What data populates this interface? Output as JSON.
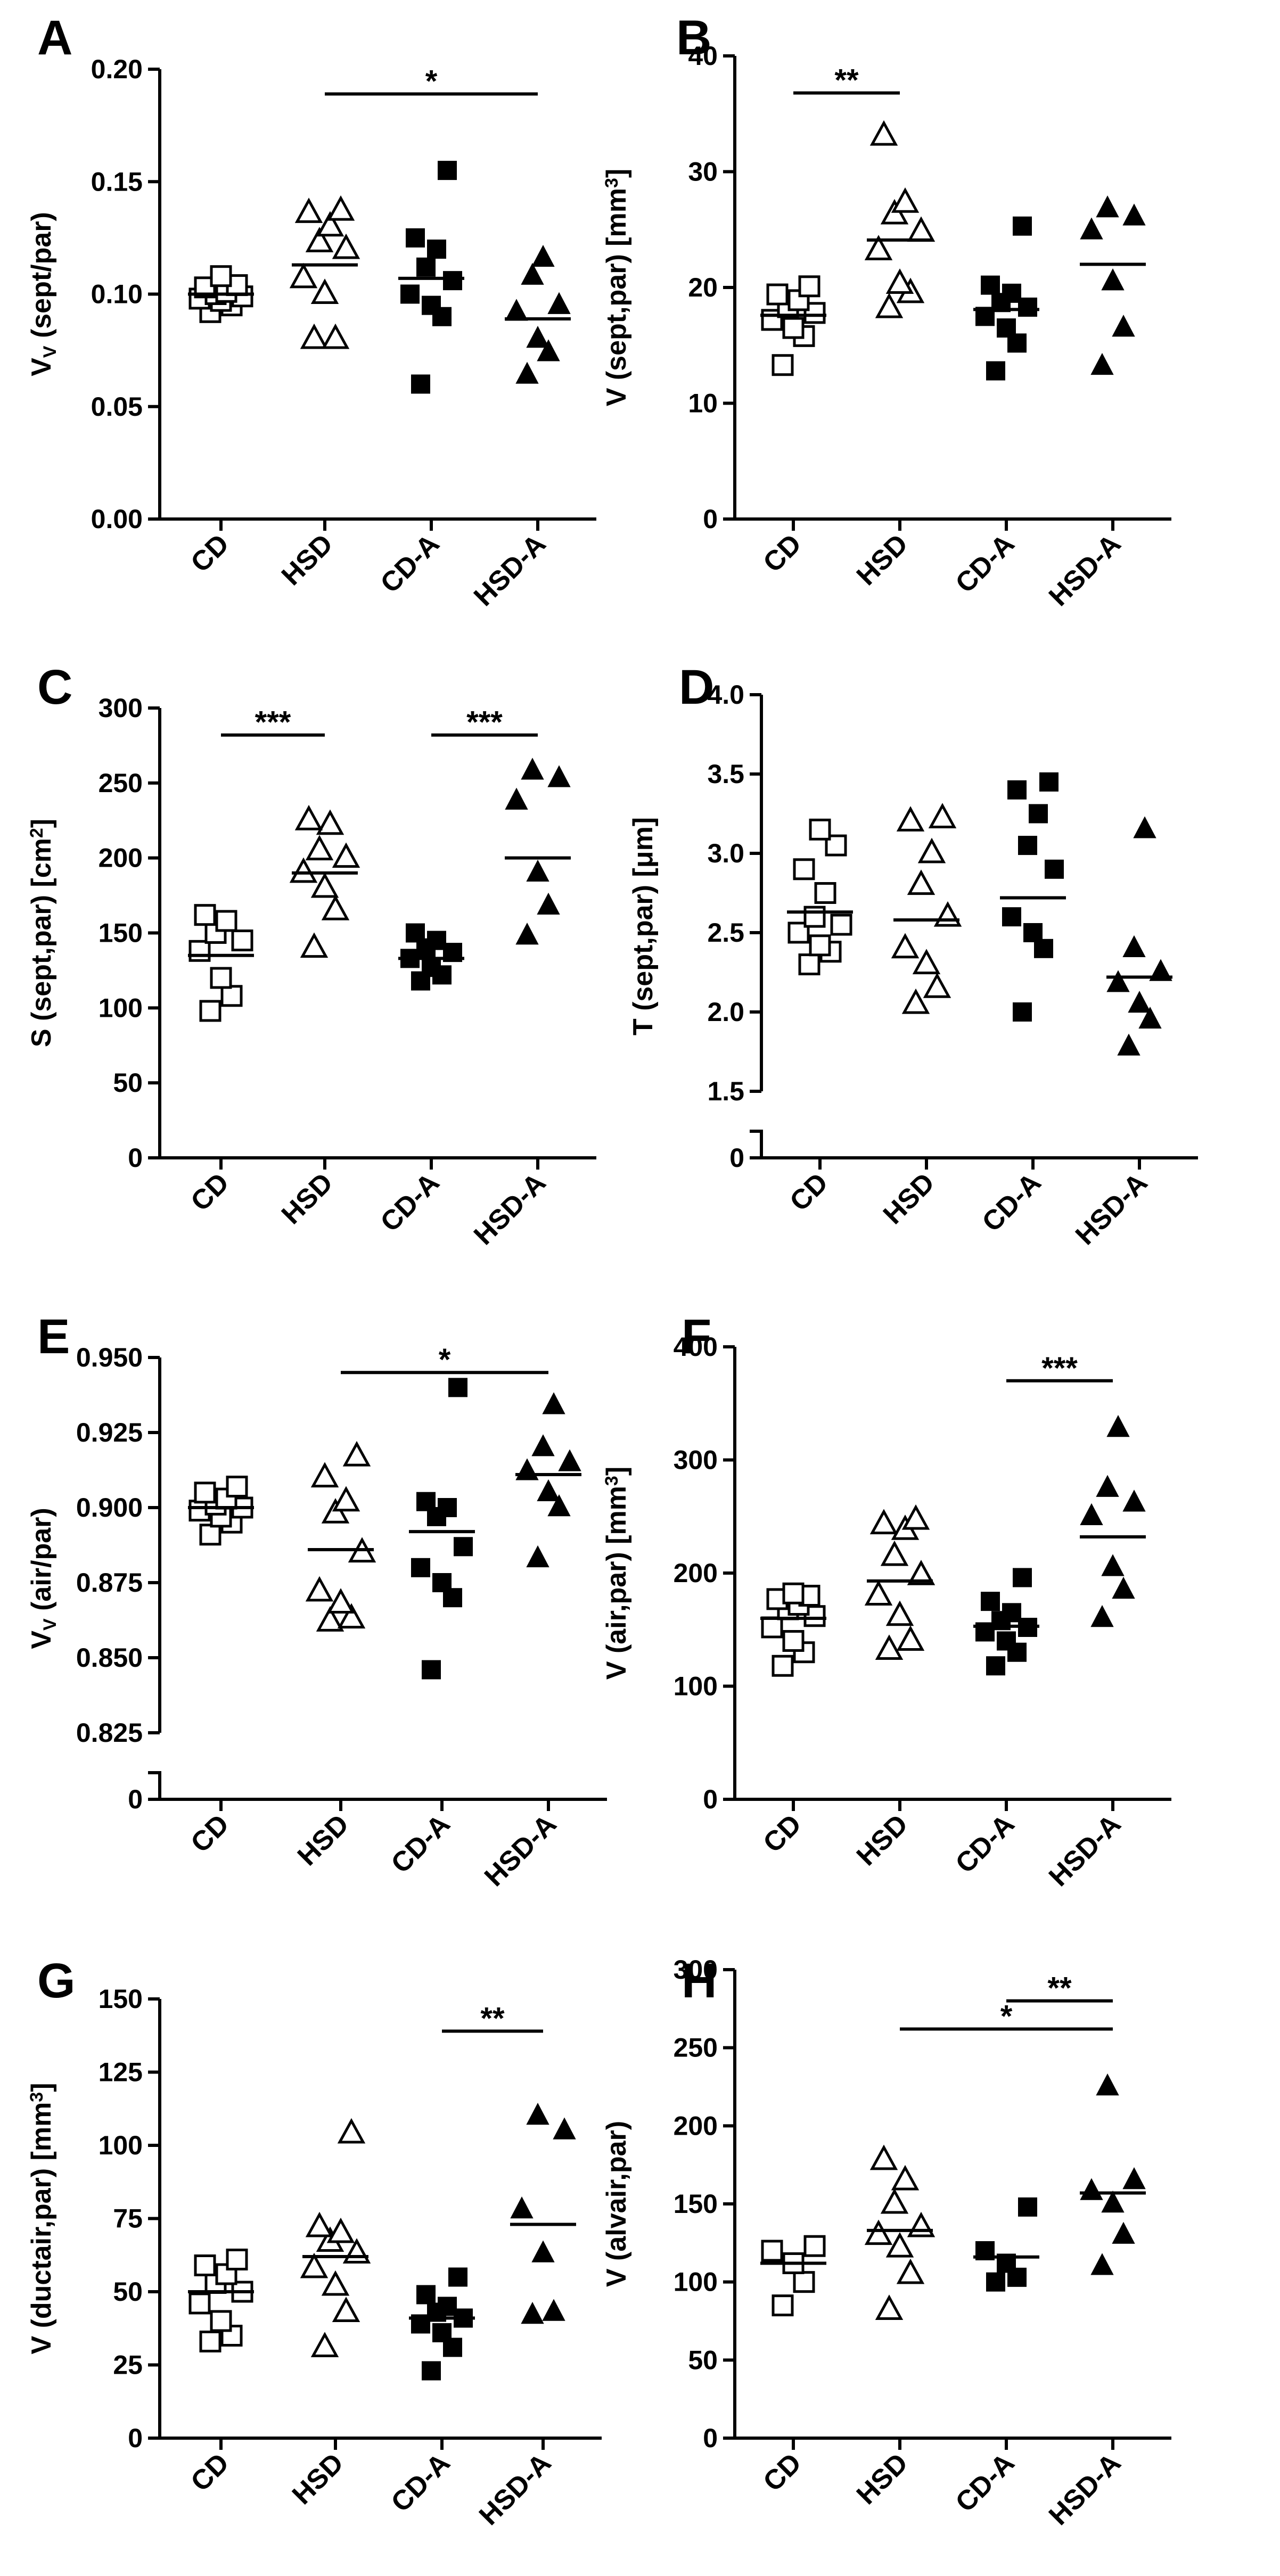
{
  "chart_data": [
    {
      "panel": "A",
      "type": "scatter",
      "ylabel": "V_V (sept/par)",
      "ylabel_parts": [
        {
          "t": "V"
        },
        {
          "t": "V",
          "sub": true
        },
        {
          "t": " (sept/par)"
        }
      ],
      "categories": [
        "CD",
        "HSD",
        "CD-A",
        "HSD-A"
      ],
      "markers": [
        "open-square",
        "open-triangle",
        "filled-square",
        "filled-triangle"
      ],
      "ylim": [
        0,
        0.2
      ],
      "yticks": [
        0,
        0.05,
        0.1,
        0.15,
        0.2
      ],
      "ytick_labels": [
        "0.00",
        "0.05",
        "0.10",
        "0.15",
        "0.20"
      ],
      "values": [
        [
          0.092,
          0.095,
          0.097,
          0.098,
          0.099,
          0.1,
          0.101,
          0.103,
          0.104,
          0.108
        ],
        [
          0.08,
          0.08,
          0.1,
          0.107,
          0.12,
          0.123,
          0.13,
          0.136,
          0.137
        ],
        [
          0.06,
          0.09,
          0.095,
          0.1,
          0.106,
          0.112,
          0.12,
          0.125,
          0.155
        ],
        [
          0.064,
          0.074,
          0.08,
          0.092,
          0.095,
          0.108,
          0.116
        ]
      ],
      "means": [
        0.1,
        0.113,
        0.107,
        0.089
      ],
      "significance": [
        {
          "from": 1,
          "to": 3,
          "y": 0.189,
          "label": "*"
        }
      ]
    },
    {
      "panel": "B",
      "type": "scatter",
      "ylabel": "V (sept,par) [mm3]",
      "ylabel_parts": [
        {
          "t": "V (sept,par) [mm"
        },
        {
          "t": "3",
          "sup": true
        },
        {
          "t": "]"
        }
      ],
      "categories": [
        "CD",
        "HSD",
        "CD-A",
        "HSD-A"
      ],
      "markers": [
        "open-square",
        "open-triangle",
        "filled-square",
        "filled-triangle"
      ],
      "ylim": [
        0,
        40
      ],
      "yticks": [
        0,
        10,
        20,
        30,
        40
      ],
      "ytick_labels": [
        "0",
        "10",
        "20",
        "30",
        "40"
      ],
      "values": [
        [
          13.3,
          15.8,
          16.5,
          17.2,
          17.8,
          18.3,
          18.9,
          19.4,
          20.1
        ],
        [
          18.2,
          19.5,
          20.3,
          23.2,
          24.8,
          26.3,
          27.3,
          33.1
        ],
        [
          12.8,
          15.2,
          16.5,
          17.5,
          18.3,
          18.7,
          19.5,
          20.2,
          25.3
        ],
        [
          13.2,
          16.5,
          20.5,
          24.9,
          26.1,
          26.8
        ]
      ],
      "means": [
        17.6,
        24.1,
        18.1,
        22.0
      ],
      "significance": [
        {
          "from": 0,
          "to": 1,
          "y": 36.8,
          "label": "**"
        }
      ]
    },
    {
      "panel": "C",
      "type": "scatter",
      "ylabel": "S (sept,par) [cm2]",
      "ylabel_parts": [
        {
          "t": "S (sept,par) [cm"
        },
        {
          "t": "2",
          "sup": true
        },
        {
          "t": "]"
        }
      ],
      "categories": [
        "CD",
        "HSD",
        "CD-A",
        "HSD-A"
      ],
      "markers": [
        "open-square",
        "open-triangle",
        "filled-square",
        "filled-triangle"
      ],
      "ylim": [
        0,
        300
      ],
      "yticks": [
        0,
        50,
        100,
        150,
        200,
        250,
        300
      ],
      "ytick_labels": [
        "0",
        "50",
        "100",
        "150",
        "200",
        "250",
        "300"
      ],
      "values": [
        [
          98,
          108,
          120,
          138,
          145,
          150,
          158,
          162
        ],
        [
          140,
          165,
          180,
          190,
          200,
          205,
          222,
          225
        ],
        [
          118,
          122,
          127,
          133,
          137,
          140,
          145,
          150
        ],
        [
          148,
          168,
          190,
          238,
          253,
          258
        ]
      ],
      "means": [
        135,
        190,
        133,
        200
      ],
      "significance": [
        {
          "from": 0,
          "to": 1,
          "y": 282,
          "label": "***"
        },
        {
          "from": 2,
          "to": 3,
          "y": 282,
          "label": "***"
        }
      ]
    },
    {
      "panel": "D",
      "type": "scatter",
      "ylabel": "T (sept,par) [μm]",
      "ylabel_parts": [
        {
          "t": "T (sept,par) [μm]"
        }
      ],
      "categories": [
        "CD",
        "HSD",
        "CD-A",
        "HSD-A"
      ],
      "markers": [
        "open-square",
        "open-triangle",
        "filled-square",
        "filled-triangle"
      ],
      "ylim": [
        1.5,
        4.0
      ],
      "axis_break": true,
      "yticks": [
        1.5,
        2.0,
        2.5,
        3.0,
        3.5,
        4.0
      ],
      "ytick_labels": [
        "1.5",
        "2.0",
        "2.5",
        "3.0",
        "3.5",
        "4.0"
      ],
      "below_break_label": "0",
      "values": [
        [
          2.3,
          2.38,
          2.42,
          2.5,
          2.55,
          2.6,
          2.75,
          2.9,
          3.05,
          3.15
        ],
        [
          2.05,
          2.15,
          2.3,
          2.4,
          2.6,
          2.8,
          3.0,
          3.2,
          3.22
        ],
        [
          2.0,
          2.4,
          2.5,
          2.6,
          2.9,
          3.05,
          3.25,
          3.4,
          3.45
        ],
        [
          1.78,
          1.95,
          2.05,
          2.18,
          2.25,
          2.4,
          3.15
        ]
      ],
      "means": [
        2.63,
        2.58,
        2.72,
        2.22
      ],
      "significance": []
    },
    {
      "panel": "E",
      "type": "scatter",
      "ylabel": "V_V (air/par)",
      "ylabel_parts": [
        {
          "t": "V"
        },
        {
          "t": "V",
          "sub": true
        },
        {
          "t": " (air/par)"
        }
      ],
      "categories": [
        "CD",
        "HSD",
        "CD-A",
        "HSD-A"
      ],
      "markers": [
        "open-square",
        "open-triangle",
        "filled-square",
        "filled-triangle"
      ],
      "ylim": [
        0.825,
        0.95
      ],
      "axis_break": true,
      "yticks": [
        0.825,
        0.85,
        0.875,
        0.9,
        0.925,
        0.95
      ],
      "ytick_labels": [
        "0.825",
        "0.850",
        "0.875",
        "0.900",
        "0.925",
        "0.950"
      ],
      "below_break_label": "0",
      "values": [
        [
          0.891,
          0.895,
          0.897,
          0.899,
          0.9,
          0.901,
          0.903,
          0.905,
          0.907
        ],
        [
          0.862,
          0.863,
          0.868,
          0.872,
          0.885,
          0.898,
          0.902,
          0.91,
          0.917
        ],
        [
          0.846,
          0.87,
          0.875,
          0.88,
          0.887,
          0.897,
          0.9,
          0.902,
          0.94
        ],
        [
          0.883,
          0.9,
          0.905,
          0.912,
          0.915,
          0.92,
          0.934
        ]
      ],
      "means": [
        0.9,
        0.886,
        0.892,
        0.911
      ],
      "significance": [
        {
          "from": 1,
          "to": 3,
          "y": 0.945,
          "label": "*"
        }
      ]
    },
    {
      "panel": "F",
      "type": "scatter",
      "ylabel": "V (air,par) [mm3]",
      "ylabel_parts": [
        {
          "t": "V (air,par) [mm"
        },
        {
          "t": "3",
          "sup": true
        },
        {
          "t": "]"
        }
      ],
      "categories": [
        "CD",
        "HSD",
        "CD-A",
        "HSD-A"
      ],
      "markers": [
        "open-square",
        "open-triangle",
        "filled-square",
        "filled-triangle"
      ],
      "ylim": [
        0,
        400
      ],
      "yticks": [
        0,
        100,
        200,
        300,
        400
      ],
      "ytick_labels": [
        "0",
        "100",
        "200",
        "300",
        "400"
      ],
      "values": [
        [
          118,
          130,
          140,
          152,
          162,
          168,
          172,
          177,
          180,
          182
        ],
        [
          132,
          140,
          162,
          180,
          198,
          215,
          238,
          243,
          247
        ],
        [
          118,
          130,
          140,
          148,
          152,
          158,
          165,
          175,
          196
        ],
        [
          160,
          185,
          205,
          250,
          262,
          275,
          328
        ]
      ],
      "means": [
        160,
        193,
        153,
        232
      ],
      "significance": [
        {
          "from": 2,
          "to": 3,
          "y": 370,
          "label": "***"
        }
      ]
    },
    {
      "panel": "G",
      "type": "scatter",
      "ylabel": "V (ductair,par) [mm3]",
      "ylabel_parts": [
        {
          "t": "V (ductair,par) [mm"
        },
        {
          "t": "3",
          "sup": true
        },
        {
          "t": "]"
        }
      ],
      "categories": [
        "CD",
        "HSD",
        "CD-A",
        "HSD-A"
      ],
      "markers": [
        "open-square",
        "open-triangle",
        "filled-square",
        "filled-triangle"
      ],
      "ylim": [
        0,
        150
      ],
      "yticks": [
        0,
        25,
        50,
        75,
        100,
        125,
        150
      ],
      "ytick_labels": [
        "0",
        "25",
        "50",
        "75",
        "100",
        "125",
        "150"
      ],
      "values": [
        [
          33,
          35,
          40,
          46,
          50,
          53,
          56,
          59,
          61
        ],
        [
          31,
          43,
          52,
          58,
          63,
          67,
          70,
          72,
          104
        ],
        [
          23,
          31,
          36,
          39,
          41,
          43,
          45,
          49,
          55
        ],
        [
          42,
          43,
          63,
          78,
          105,
          110
        ]
      ],
      "means": [
        50,
        62,
        41,
        73
      ],
      "significance": [
        {
          "from": 2,
          "to": 3,
          "y": 139,
          "label": "**"
        }
      ]
    },
    {
      "panel": "H",
      "type": "scatter",
      "ylabel": "V (alvair,par)",
      "ylabel_parts": [
        {
          "t": "V (alvair,par)"
        }
      ],
      "categories": [
        "CD",
        "HSD",
        "CD-A",
        "HSD-A"
      ],
      "markers": [
        "open-square",
        "open-triangle",
        "filled-square",
        "filled-triangle"
      ],
      "ylim": [
        0,
        300
      ],
      "yticks": [
        0,
        50,
        100,
        150,
        200,
        250,
        300
      ],
      "ytick_labels": [
        "0",
        "50",
        "100",
        "150",
        "200",
        "250",
        "300"
      ],
      "values": [
        [
          85,
          100,
          112,
          120,
          123
        ],
        [
          82,
          105,
          122,
          130,
          135,
          150,
          165,
          178
        ],
        [
          100,
          103,
          112,
          120,
          148
        ],
        [
          110,
          130,
          150,
          158,
          165,
          225
        ]
      ],
      "means": [
        112,
        133,
        116,
        157
      ],
      "significance": [
        {
          "from": 2,
          "to": 3,
          "y": 280,
          "label": "**"
        },
        {
          "from": 1,
          "to": 3,
          "y": 262,
          "label": "*"
        }
      ]
    }
  ]
}
